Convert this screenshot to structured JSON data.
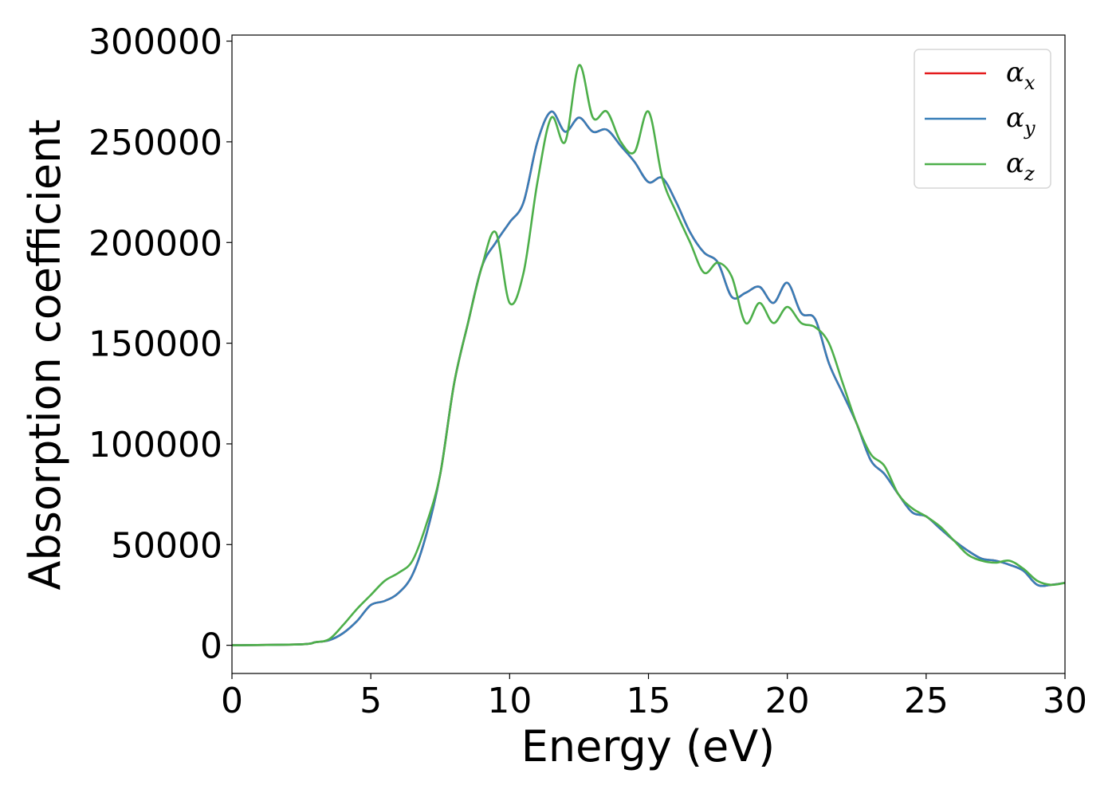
{
  "chart_data": {
    "type": "line",
    "title": "",
    "xlabel": "Energy (eV)",
    "ylabel": "Absorption coefficient",
    "xlim": [
      0,
      30
    ],
    "ylim": [
      -14000,
      303000
    ],
    "xticks": [
      0,
      5,
      10,
      15,
      20,
      25,
      30
    ],
    "yticks": [
      0,
      50000,
      100000,
      150000,
      200000,
      250000,
      300000
    ],
    "grid": false,
    "legend_position": "top-right",
    "series": [
      {
        "name": "α",
        "subscript": "x",
        "color": "#e41a1c",
        "x": [
          0,
          2.5,
          3,
          3.5,
          4,
          4.5,
          5,
          5.5,
          6,
          6.5,
          7,
          7.5,
          8,
          8.5,
          9,
          9.5,
          10,
          10.5,
          11,
          11.5,
          12,
          12.5,
          13,
          13.5,
          14,
          14.5,
          15,
          15.5,
          16,
          16.5,
          17,
          17.5,
          18,
          18.5,
          19,
          19.5,
          20,
          20.5,
          21,
          21.5,
          22,
          22.5,
          23,
          23.5,
          24,
          24.5,
          25,
          25.5,
          26,
          26.5,
          27,
          27.5,
          28,
          28.5,
          29,
          29.5,
          30
        ],
        "y": [
          0,
          500,
          1500,
          2500,
          6000,
          12000,
          20000,
          22000,
          26000,
          35000,
          55000,
          85000,
          130000,
          160000,
          188000,
          200000,
          210000,
          220000,
          250000,
          265000,
          255000,
          262000,
          255000,
          256000,
          248000,
          240000,
          230000,
          232000,
          220000,
          205000,
          195000,
          190000,
          173000,
          175000,
          178000,
          170000,
          180000,
          165000,
          162000,
          140000,
          125000,
          110000,
          92000,
          85000,
          75000,
          66000,
          64000,
          58000,
          52000,
          47000,
          43000,
          42000,
          40000,
          37000,
          30000,
          30000,
          31000
        ]
      },
      {
        "name": "α",
        "subscript": "y",
        "color": "#377eb8",
        "x": [
          0,
          2.5,
          3,
          3.5,
          4,
          4.5,
          5,
          5.5,
          6,
          6.5,
          7,
          7.5,
          8,
          8.5,
          9,
          9.5,
          10,
          10.5,
          11,
          11.5,
          12,
          12.5,
          13,
          13.5,
          14,
          14.5,
          15,
          15.5,
          16,
          16.5,
          17,
          17.5,
          18,
          18.5,
          19,
          19.5,
          20,
          20.5,
          21,
          21.5,
          22,
          22.5,
          23,
          23.5,
          24,
          24.5,
          25,
          25.5,
          26,
          26.5,
          27,
          27.5,
          28,
          28.5,
          29,
          29.5,
          30
        ],
        "y": [
          0,
          500,
          1500,
          2500,
          6000,
          12000,
          20000,
          22000,
          26000,
          35000,
          55000,
          85000,
          130000,
          160000,
          188000,
          200000,
          210000,
          220000,
          250000,
          265000,
          255000,
          262000,
          255000,
          256000,
          248000,
          240000,
          230000,
          232000,
          220000,
          205000,
          195000,
          190000,
          173000,
          175000,
          178000,
          170000,
          180000,
          165000,
          162000,
          140000,
          125000,
          110000,
          92000,
          85000,
          75000,
          66000,
          64000,
          58000,
          52000,
          47000,
          43000,
          42000,
          40000,
          37000,
          30000,
          30000,
          31000
        ]
      },
      {
        "name": "α",
        "subscript": "z",
        "color": "#4daf4a",
        "x": [
          0,
          2.5,
          3,
          3.5,
          4,
          4.5,
          5,
          5.5,
          6,
          6.5,
          7,
          7.5,
          8,
          8.5,
          9,
          9.5,
          10,
          10.5,
          11,
          11.5,
          12,
          12.5,
          13,
          13.5,
          14,
          14.5,
          15,
          15.5,
          16,
          16.5,
          17,
          17.5,
          18,
          18.5,
          19,
          19.5,
          20,
          20.5,
          21,
          21.5,
          22,
          22.5,
          23,
          23.5,
          24,
          24.5,
          25,
          25.5,
          26,
          26.5,
          27,
          27.5,
          28,
          28.5,
          29,
          29.5,
          30
        ],
        "y": [
          0,
          500,
          1500,
          3000,
          10000,
          18000,
          25000,
          32000,
          36000,
          42000,
          60000,
          85000,
          130000,
          160000,
          188000,
          205000,
          170000,
          185000,
          230000,
          262000,
          250000,
          288000,
          262000,
          265000,
          250000,
          245000,
          265000,
          232000,
          215000,
          200000,
          185000,
          190000,
          183000,
          160000,
          170000,
          160000,
          168000,
          160000,
          158000,
          150000,
          130000,
          110000,
          95000,
          89000,
          75000,
          68000,
          64000,
          59000,
          52000,
          45000,
          42000,
          41000,
          42000,
          38000,
          32000,
          30000,
          31000
        ]
      }
    ]
  }
}
